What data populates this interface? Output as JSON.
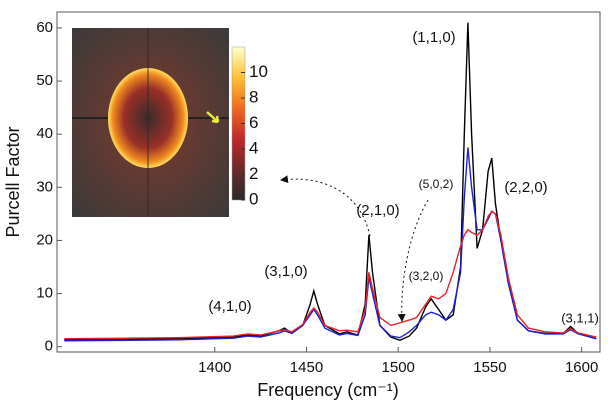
{
  "chart_data": {
    "type": "line",
    "xlabel": "Frequency (cm⁻¹)",
    "ylabel": "Purcell Factor",
    "xlim": [
      1314,
      1610
    ],
    "ylim": [
      -1,
      63
    ],
    "xticks": [
      1400,
      1450,
      1500,
      1550,
      1600
    ],
    "yticks": [
      0,
      10,
      20,
      30,
      40,
      50,
      60
    ],
    "x": [
      1318,
      1380,
      1410,
      1418,
      1425,
      1435,
      1438,
      1442,
      1448,
      1452,
      1454,
      1456,
      1460,
      1468,
      1472,
      1478,
      1482,
      1484,
      1486,
      1490,
      1496,
      1501,
      1506,
      1510,
      1515,
      1518,
      1522,
      1526,
      1530,
      1534,
      1536,
      1538,
      1540,
      1543,
      1546,
      1549,
      1551,
      1553,
      1556,
      1560,
      1565,
      1571,
      1580,
      1590,
      1594,
      1598,
      1608
    ],
    "series": [
      {
        "color": "#000000",
        "values": [
          1.3,
          1.5,
          1.8,
          2.2,
          2.0,
          3.0,
          3.5,
          2.5,
          4,
          8,
          10.5,
          8,
          4,
          2.4,
          2.8,
          2.2,
          8,
          21,
          14,
          4,
          1.8,
          1.2,
          2.0,
          3.5,
          7.5,
          9,
          7,
          5,
          6,
          15,
          40,
          61,
          40,
          18.5,
          22,
          33,
          35.5,
          27,
          20,
          12,
          5,
          3,
          2.5,
          2.5,
          3.8,
          2.5,
          1.5
        ]
      },
      {
        "color": "#1f1fd0",
        "values": [
          1.1,
          1.3,
          1.6,
          2.0,
          1.8,
          2.6,
          3.0,
          2.5,
          4,
          6,
          7,
          6,
          3.5,
          2.2,
          2.5,
          2.1,
          6,
          13,
          10,
          4,
          2,
          1.7,
          2.8,
          4,
          6,
          6.5,
          6,
          5,
          7,
          14,
          28,
          37.5,
          30,
          22,
          22,
          24,
          25.5,
          25,
          20,
          12,
          5,
          3,
          2.4,
          2.4,
          3.2,
          2.4,
          1.5
        ]
      },
      {
        "color": "#e8222a",
        "values": [
          1.5,
          1.7,
          2.0,
          2.4,
          2.2,
          3.0,
          3.2,
          2.8,
          4.2,
          6.5,
          7.3,
          6.5,
          4,
          3,
          3.1,
          2.8,
          7,
          14,
          11,
          5.5,
          4,
          4.5,
          5,
          5.5,
          8,
          9.5,
          9,
          10,
          14,
          19,
          21,
          22,
          21.5,
          21,
          22,
          24.5,
          25.5,
          25,
          21,
          13,
          6,
          3.5,
          2.8,
          2.6,
          3.4,
          2.6,
          1.8
        ]
      }
    ],
    "annotations": [
      "(4,1,0)",
      "(3,1,0)",
      "(2,1,0)",
      "(3,2,0)",
      "(5,0,2)",
      "(1,1,0)",
      "(2,2,0)",
      "(3,1,1)"
    ],
    "inset": {
      "colorbar_lim": [
        0,
        12
      ],
      "colorbar_ticks": [
        0,
        2,
        4,
        6,
        8,
        10
      ]
    }
  }
}
